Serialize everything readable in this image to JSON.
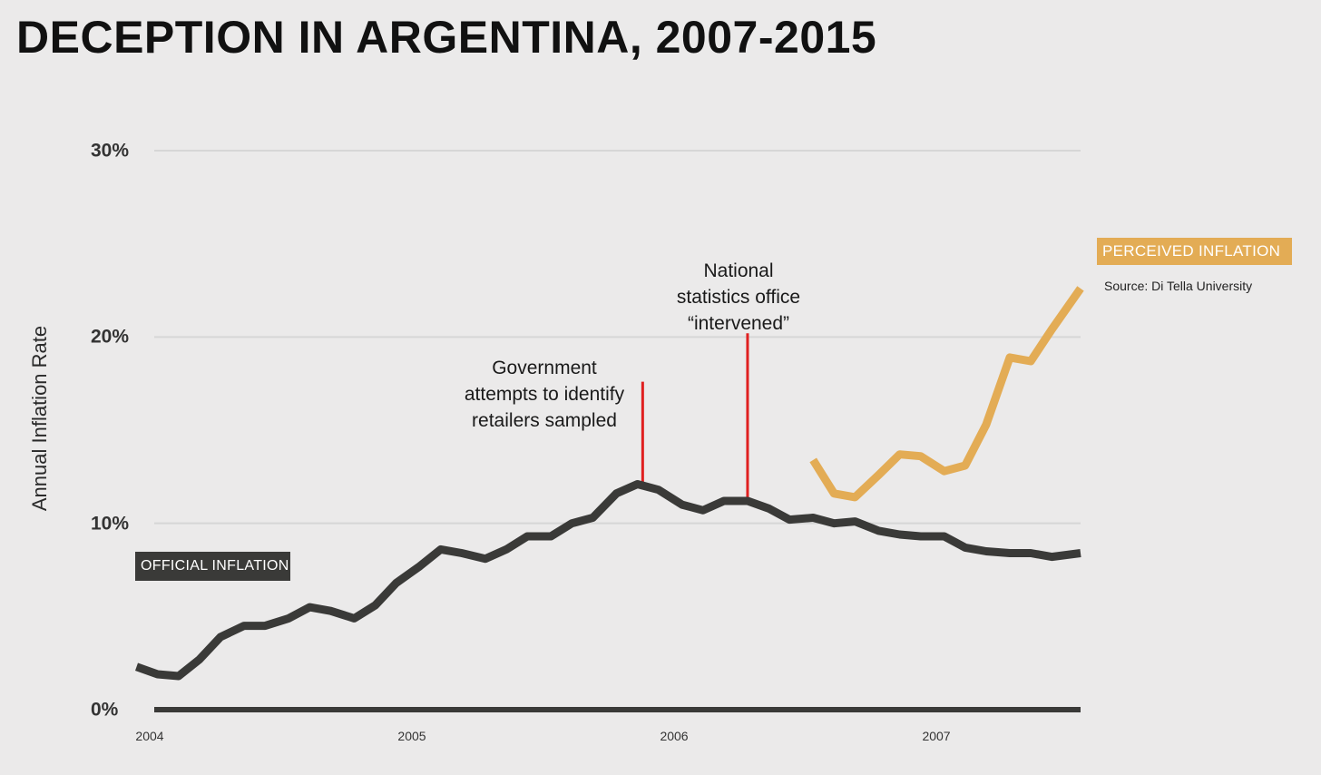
{
  "chart_data": {
    "type": "line",
    "title": "DECEPTION IN ARGENTINA, 2007-2015",
    "ylabel": "Annual Inflation Rate",
    "xlabel": "",
    "ylim": [
      0,
      30
    ],
    "xlim": [
      2004,
      2007.55
    ],
    "yticks": [
      {
        "value": 0,
        "label": "0%"
      },
      {
        "value": 10,
        "label": "10%"
      },
      {
        "value": 20,
        "label": "20%"
      },
      {
        "value": 30,
        "label": "30%"
      }
    ],
    "xticks": [
      {
        "value": 2004,
        "label": "2004"
      },
      {
        "value": 2005,
        "label": "2005"
      },
      {
        "value": 2006,
        "label": "2006"
      },
      {
        "value": 2007,
        "label": "2007"
      }
    ],
    "grid": true,
    "series": [
      {
        "name": "OFFICIAL  INFLATION",
        "color": "#3a3a38",
        "x": [
          2003.95,
          2004.03,
          2004.11,
          2004.19,
          2004.27,
          2004.36,
          2004.44,
          2004.53,
          2004.61,
          2004.69,
          2004.78,
          2004.86,
          2004.94,
          2005.03,
          2005.11,
          2005.19,
          2005.28,
          2005.36,
          2005.44,
          2005.53,
          2005.61,
          2005.69,
          2005.78,
          2005.86,
          2005.94,
          2006.03,
          2006.11,
          2006.19,
          2006.28,
          2006.36,
          2006.44,
          2006.53,
          2006.61,
          2006.69,
          2006.78,
          2006.86,
          2006.94,
          2007.03,
          2007.11,
          2007.19,
          2007.28,
          2007.36,
          2007.44,
          2007.55
        ],
        "values": [
          2.3,
          1.9,
          1.8,
          2.7,
          3.9,
          4.5,
          4.5,
          4.9,
          5.5,
          5.3,
          4.9,
          5.6,
          6.8,
          7.7,
          8.6,
          8.4,
          8.1,
          8.6,
          9.3,
          9.3,
          10.0,
          10.3,
          11.6,
          12.1,
          11.8,
          11.0,
          10.7,
          11.2,
          11.2,
          10.8,
          10.2,
          10.3,
          10.0,
          10.1,
          9.6,
          9.4,
          9.3,
          9.3,
          8.7,
          8.5,
          8.4,
          8.4,
          8.2,
          8.4
        ]
      },
      {
        "name": "PERCEIVED INFLATION",
        "color": "#e3ac55",
        "x": [
          2006.53,
          2006.61,
          2006.69,
          2006.78,
          2006.86,
          2006.94,
          2007.03,
          2007.11,
          2007.19,
          2007.28,
          2007.36,
          2007.44,
          2007.55
        ],
        "values": [
          13.4,
          11.6,
          11.4,
          12.6,
          13.7,
          13.6,
          12.8,
          13.1,
          15.3,
          18.9,
          18.7,
          20.4,
          22.6
        ]
      }
    ],
    "annotations": [
      {
        "text": "Government\nattempts to identify\nretailers sampled",
        "x": 2005.88,
        "y_start": 12.0,
        "y_end": 17.6,
        "color": "#e02020"
      },
      {
        "text": "National\nstatistics office\n“intervened”",
        "x": 2006.28,
        "y_start": 11.2,
        "y_end": 20.2,
        "color": "#e02020"
      }
    ],
    "source": "Source: Di Tella University"
  }
}
